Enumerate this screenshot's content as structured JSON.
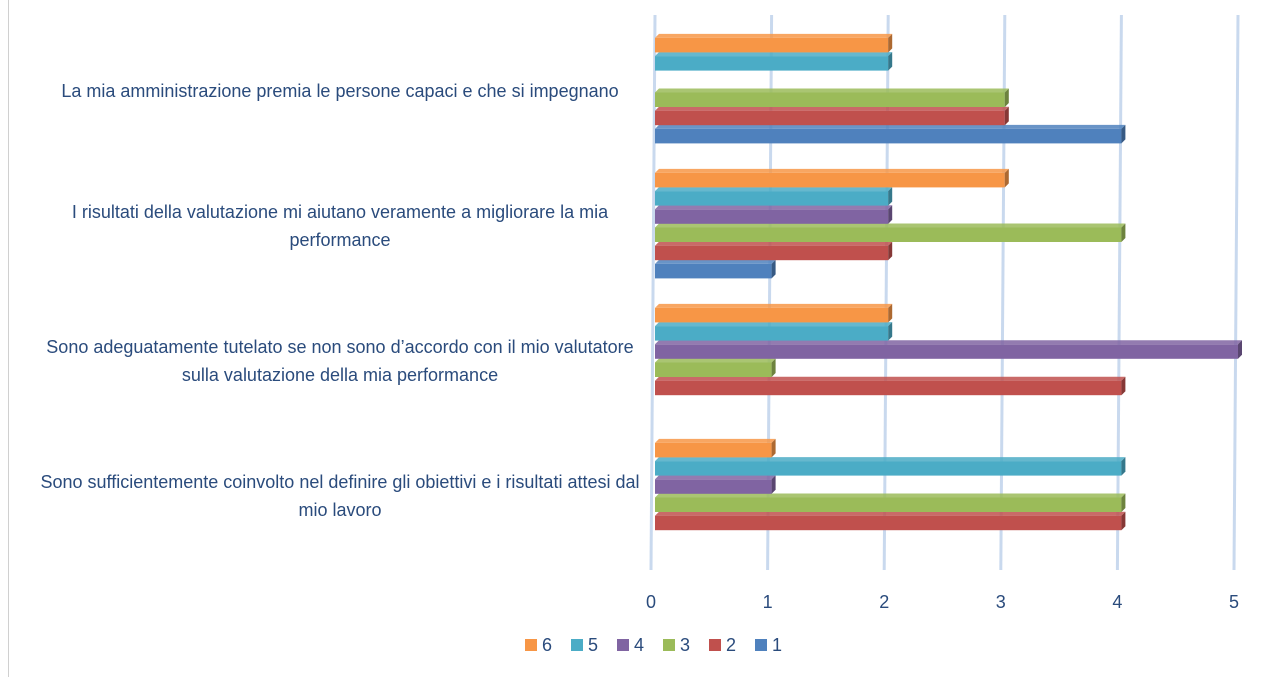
{
  "chart_data": {
    "type": "bar3d",
    "categories": [
      "La mia amministrazione premia le persone capaci e che si impegnano",
      "I risultati della valutazione mi aiutano veramente a migliorare la mia performance",
      "Sono adeguatamente tutelato se non sono d’accordo con il mio valutatore sulla valutazione della mia performance",
      "Sono sufficientemente coinvolto nel definire gli obiettivi e i risultati attesi dal mio lavoro"
    ],
    "series": [
      {
        "name": "1",
        "color": "#4f81bd",
        "values": [
          4,
          1,
          null,
          null
        ]
      },
      {
        "name": "2",
        "color": "#c0504d",
        "values": [
          3,
          2,
          4,
          4
        ]
      },
      {
        "name": "3",
        "color": "#9bbb59",
        "values": [
          3,
          4,
          1,
          4
        ]
      },
      {
        "name": "4",
        "color": "#8064a2",
        "values": [
          null,
          2,
          5,
          1
        ]
      },
      {
        "name": "5",
        "color": "#4bacc6",
        "values": [
          2,
          2,
          2,
          4
        ]
      },
      {
        "name": "6",
        "color": "#f79646",
        "values": [
          2,
          3,
          2,
          1
        ]
      }
    ],
    "xlim": [
      0,
      5
    ],
    "xticks": [
      0,
      1,
      2,
      3,
      4,
      5
    ],
    "grid": true
  }
}
